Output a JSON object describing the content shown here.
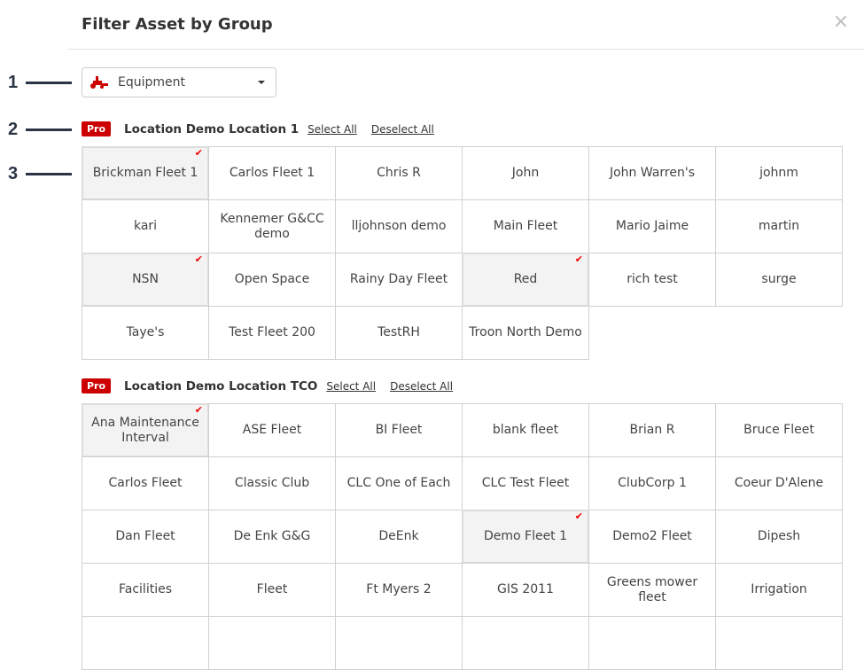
{
  "header": {
    "title": "Filter Asset by Group",
    "close": "×"
  },
  "callouts": [
    "1",
    "2",
    "3"
  ],
  "asset_type": {
    "value": "Equipment",
    "icon": "mower-icon",
    "icon_color": "#cc0000"
  },
  "groups": [
    {
      "badge": "Pro",
      "name": "Location Demo Location 1",
      "select_all": "Select All",
      "deselect_all": "Deselect All",
      "items": [
        {
          "label": "Brickman Fleet 1",
          "selected": true
        },
        {
          "label": "Carlos Fleet 1",
          "selected": false
        },
        {
          "label": "Chris R",
          "selected": false
        },
        {
          "label": "John",
          "selected": false
        },
        {
          "label": "John Warren's",
          "selected": false
        },
        {
          "label": "johnm",
          "selected": false
        },
        {
          "label": "kari",
          "selected": false
        },
        {
          "label": "Kennemer G&CC demo",
          "selected": false
        },
        {
          "label": "lljohnson demo",
          "selected": false
        },
        {
          "label": "Main Fleet",
          "selected": false
        },
        {
          "label": "Mario Jaime",
          "selected": false
        },
        {
          "label": "martin",
          "selected": false
        },
        {
          "label": "NSN",
          "selected": true
        },
        {
          "label": "Open Space",
          "selected": false
        },
        {
          "label": "Rainy Day Fleet",
          "selected": false
        },
        {
          "label": "Red",
          "selected": true
        },
        {
          "label": "rich test",
          "selected": false
        },
        {
          "label": "surge",
          "selected": false
        },
        {
          "label": "Taye's",
          "selected": false
        },
        {
          "label": "Test Fleet 200",
          "selected": false
        },
        {
          "label": "TestRH",
          "selected": false
        },
        {
          "label": "Troon North Demo",
          "selected": false
        }
      ]
    },
    {
      "badge": "Pro",
      "name": "Location Demo Location TCO",
      "select_all": "Select All",
      "deselect_all": "Deselect All",
      "items": [
        {
          "label": "Ana Maintenance Interval",
          "selected": true
        },
        {
          "label": "ASE Fleet",
          "selected": false
        },
        {
          "label": "BI Fleet",
          "selected": false
        },
        {
          "label": "blank fleet",
          "selected": false
        },
        {
          "label": "Brian R",
          "selected": false
        },
        {
          "label": "Bruce Fleet",
          "selected": false
        },
        {
          "label": "Carlos Fleet",
          "selected": false
        },
        {
          "label": "Classic Club",
          "selected": false
        },
        {
          "label": "CLC One of Each",
          "selected": false
        },
        {
          "label": "CLC Test Fleet",
          "selected": false
        },
        {
          "label": "ClubCorp 1",
          "selected": false
        },
        {
          "label": "Coeur D'Alene",
          "selected": false
        },
        {
          "label": "Dan Fleet",
          "selected": false
        },
        {
          "label": "De Enk G&G",
          "selected": false
        },
        {
          "label": "DeEnk",
          "selected": false
        },
        {
          "label": "Demo Fleet 1",
          "selected": true
        },
        {
          "label": "Demo2 Fleet",
          "selected": false
        },
        {
          "label": "Dipesh",
          "selected": false
        },
        {
          "label": "Facilities",
          "selected": false
        },
        {
          "label": "Fleet",
          "selected": false
        },
        {
          "label": "Ft Myers 2",
          "selected": false
        },
        {
          "label": "GIS 2011",
          "selected": false
        },
        {
          "label": "Greens mower fleet",
          "selected": false
        },
        {
          "label": "Irrigation",
          "selected": false
        },
        {
          "label": "",
          "selected": false
        },
        {
          "label": "",
          "selected": false
        },
        {
          "label": "",
          "selected": false
        },
        {
          "label": "",
          "selected": false
        },
        {
          "label": "",
          "selected": false
        },
        {
          "label": "",
          "selected": false
        }
      ]
    }
  ]
}
